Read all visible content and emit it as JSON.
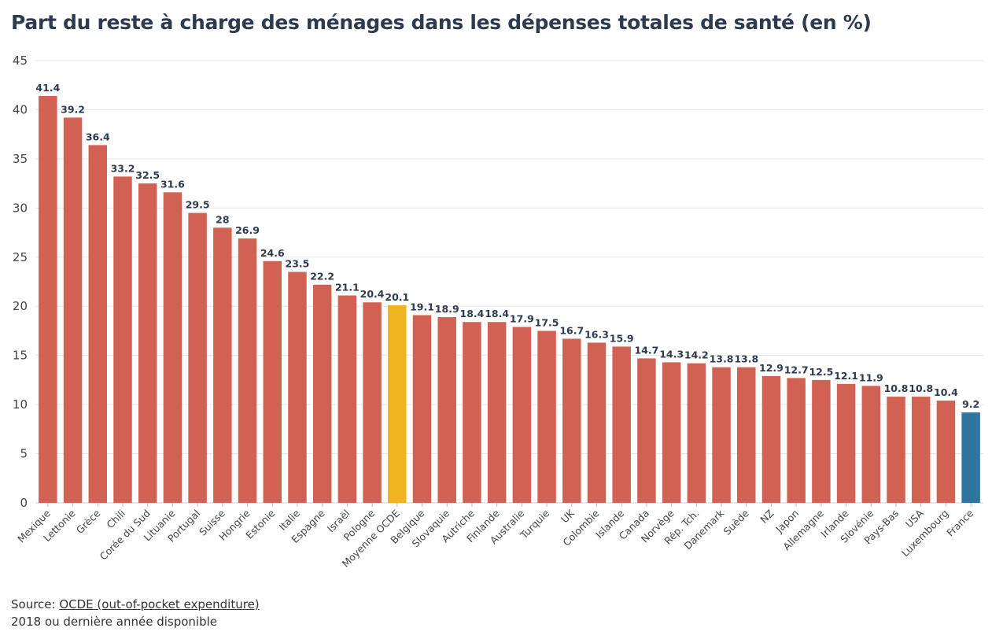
{
  "title": "Part du reste à charge des ménages dans les dépenses totales de santé (en %)",
  "footer": {
    "source_prefix": "Source: ",
    "source_link": "OCDE (out-of-pocket expenditure)",
    "note": "2018 ou dernière année disponible"
  },
  "colors": {
    "default": "#d16152",
    "average": "#efb521",
    "highlight": "#2e75a0"
  },
  "chart_data": {
    "type": "bar",
    "title": "Part du reste à charge des ménages dans les dépenses totales de santé (en %)",
    "xlabel": "",
    "ylabel": "",
    "ylim": [
      0,
      45
    ],
    "yticks": [
      0,
      5,
      10,
      15,
      20,
      25,
      30,
      35,
      40,
      45
    ],
    "grid": true,
    "categories": [
      "Mexique",
      "Lettonie",
      "Grèce",
      "Chili",
      "Corée du Sud",
      "Lituanie",
      "Portugal",
      "Suisse",
      "Hongrie",
      "Estonie",
      "Italie",
      "Espagne",
      "Israël",
      "Pologne",
      "Moyenne OCDE",
      "Belgique",
      "Slovaquie",
      "Autriche",
      "Finlande",
      "Australie",
      "Turquie",
      "UK",
      "Colombie",
      "Islande",
      "Canada",
      "Norvège",
      "Rép. Tch.",
      "Danemark",
      "Suède",
      "NZ",
      "Japon",
      "Allemagne",
      "Irlande",
      "Slovénie",
      "Pays-Bas",
      "USA",
      "Luxembourg",
      "France"
    ],
    "values": [
      41.4,
      39.2,
      36.4,
      33.2,
      32.5,
      31.6,
      29.5,
      28,
      26.9,
      24.6,
      23.5,
      22.2,
      21.1,
      20.4,
      20.1,
      19.1,
      18.9,
      18.4,
      18.4,
      17.9,
      17.5,
      16.7,
      16.3,
      15.9,
      14.7,
      14.3,
      14.2,
      13.8,
      13.8,
      12.9,
      12.7,
      12.5,
      12.1,
      11.9,
      10.8,
      10.8,
      10.4,
      9.2
    ],
    "bar_colors": {
      "Moyenne OCDE": "average",
      "France": "highlight"
    }
  }
}
